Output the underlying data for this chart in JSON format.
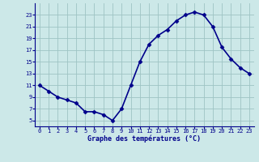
{
  "hours": [
    0,
    1,
    2,
    3,
    4,
    5,
    6,
    7,
    8,
    9,
    10,
    11,
    12,
    13,
    14,
    15,
    16,
    17,
    18,
    19,
    20,
    21,
    22,
    23
  ],
  "temps": [
    11,
    10,
    9,
    8.5,
    8,
    6.5,
    6.5,
    6,
    5,
    7,
    11,
    15,
    18,
    19.5,
    20.5,
    22,
    23,
    23.5,
    23,
    21,
    17.5,
    15.5,
    14,
    13
  ],
  "line_color": "#00008b",
  "marker": "D",
  "marker_size": 2.5,
  "bg_color": "#cce8e8",
  "grid_color": "#9ec4c4",
  "xlabel": "Graphe des températures (°C)",
  "xlabel_color": "#00008b",
  "tick_color": "#00008b",
  "ylim": [
    4,
    25
  ],
  "yticks": [
    5,
    7,
    9,
    11,
    13,
    15,
    17,
    19,
    21,
    23
  ],
  "xlim": [
    -0.5,
    23.5
  ],
  "xticks": [
    0,
    1,
    2,
    3,
    4,
    5,
    6,
    7,
    8,
    9,
    10,
    11,
    12,
    13,
    14,
    15,
    16,
    17,
    18,
    19,
    20,
    21,
    22,
    23
  ],
  "linewidth": 1.2
}
